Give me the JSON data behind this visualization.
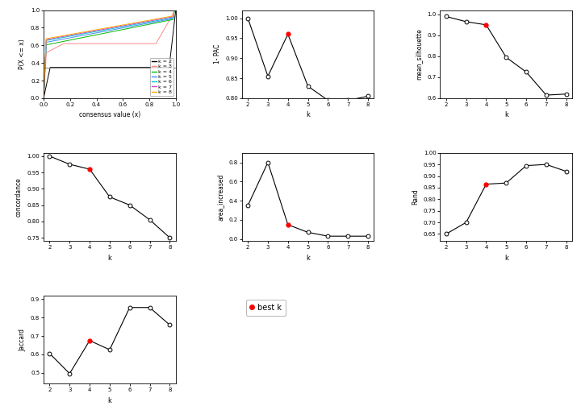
{
  "k_values": [
    2,
    3,
    4,
    5,
    6,
    7,
    8
  ],
  "pac_1minus": [
    1.0,
    0.855,
    0.96,
    0.83,
    0.795,
    0.795,
    0.805
  ],
  "pac_best_k": 4,
  "mean_silhouette": [
    0.99,
    0.965,
    0.95,
    0.795,
    0.725,
    0.615,
    0.62
  ],
  "silhouette_best_k": 4,
  "concordance": [
    1.0,
    0.975,
    0.96,
    0.875,
    0.85,
    0.805,
    0.75
  ],
  "concordance_best_k": 4,
  "area_increased": [
    0.35,
    0.8,
    0.15,
    0.07,
    0.03,
    0.03,
    0.03
  ],
  "area_best_k": 4,
  "rand": [
    0.65,
    0.7,
    0.865,
    0.87,
    0.945,
    0.95,
    0.92
  ],
  "rand_best_k": 4,
  "jaccard": [
    0.605,
    0.495,
    0.675,
    0.625,
    0.855,
    0.855,
    0.76
  ],
  "jaccard_best_k": 4,
  "cdf_colors": [
    "#000000",
    "#FF8888",
    "#00BB00",
    "#4488FF",
    "#00CCCC",
    "#CC44CC",
    "#FFAA00"
  ],
  "cdf_labels": [
    "k = 2",
    "k = 3",
    "k = 4",
    "k = 5",
    "k = 6",
    "k = 7",
    "k = 8"
  ],
  "ref_line_y": 0.35,
  "background_color": "#FFFFFF"
}
